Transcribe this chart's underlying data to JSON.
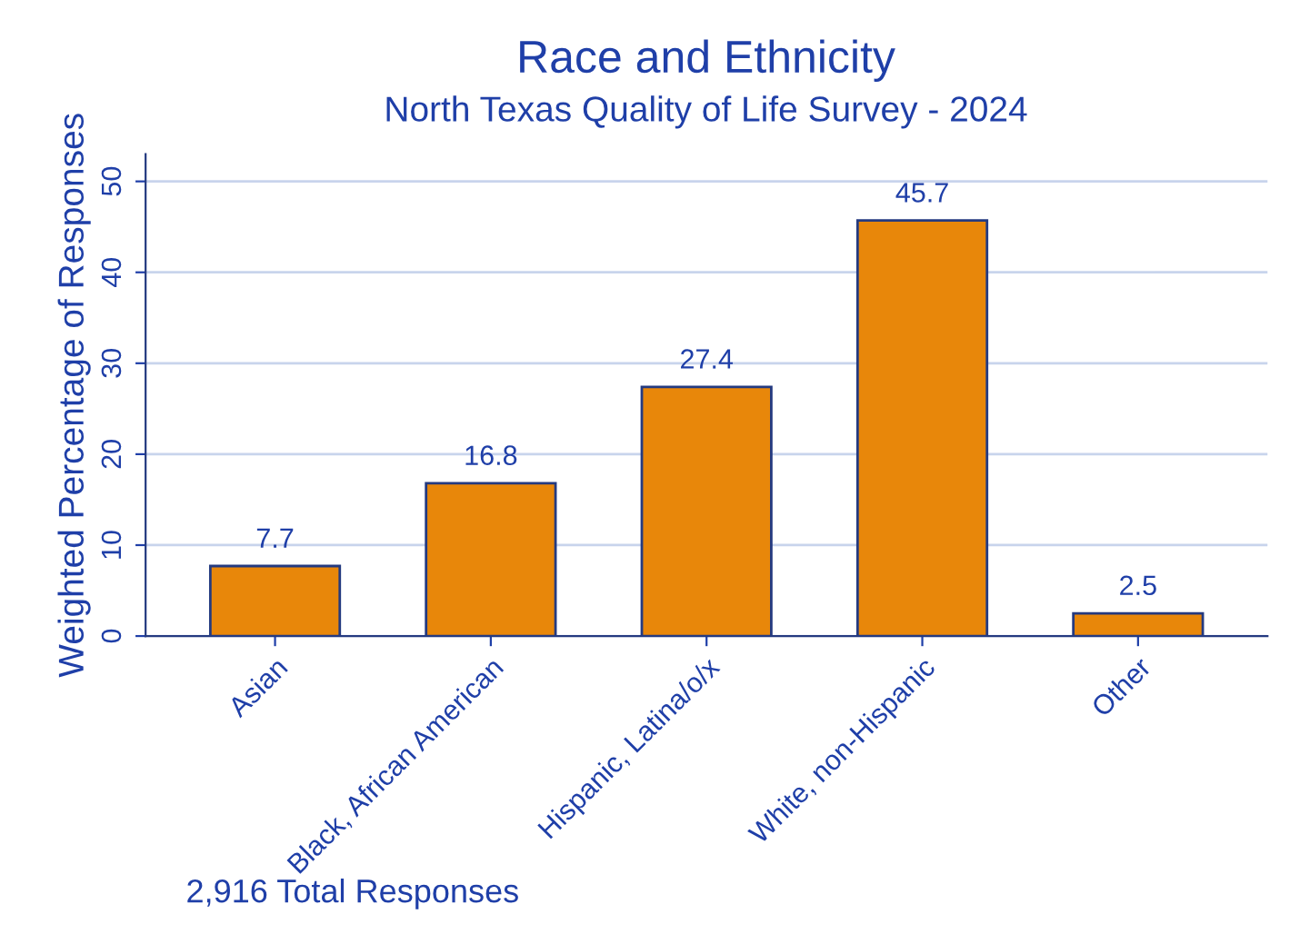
{
  "chart_data": {
    "type": "bar",
    "title": "Race and Ethnicity",
    "subtitle": "North Texas Quality of Life Survey - 2024",
    "ylabel": "Weighted Percentage of Responses",
    "categories": [
      "Asian",
      "Black, African American",
      "Hispanic, Latina/o/x",
      "White, non-Hispanic",
      "Other"
    ],
    "values": [
      7.7,
      16.8,
      27.4,
      45.7,
      2.5
    ],
    "color": "#e8870a",
    "data_labels": true,
    "ylim": [
      0,
      53
    ],
    "yticks": [
      0,
      10,
      20,
      30,
      40,
      50
    ],
    "grid": "y",
    "annotations": [
      "2,916 Total Responses"
    ]
  }
}
